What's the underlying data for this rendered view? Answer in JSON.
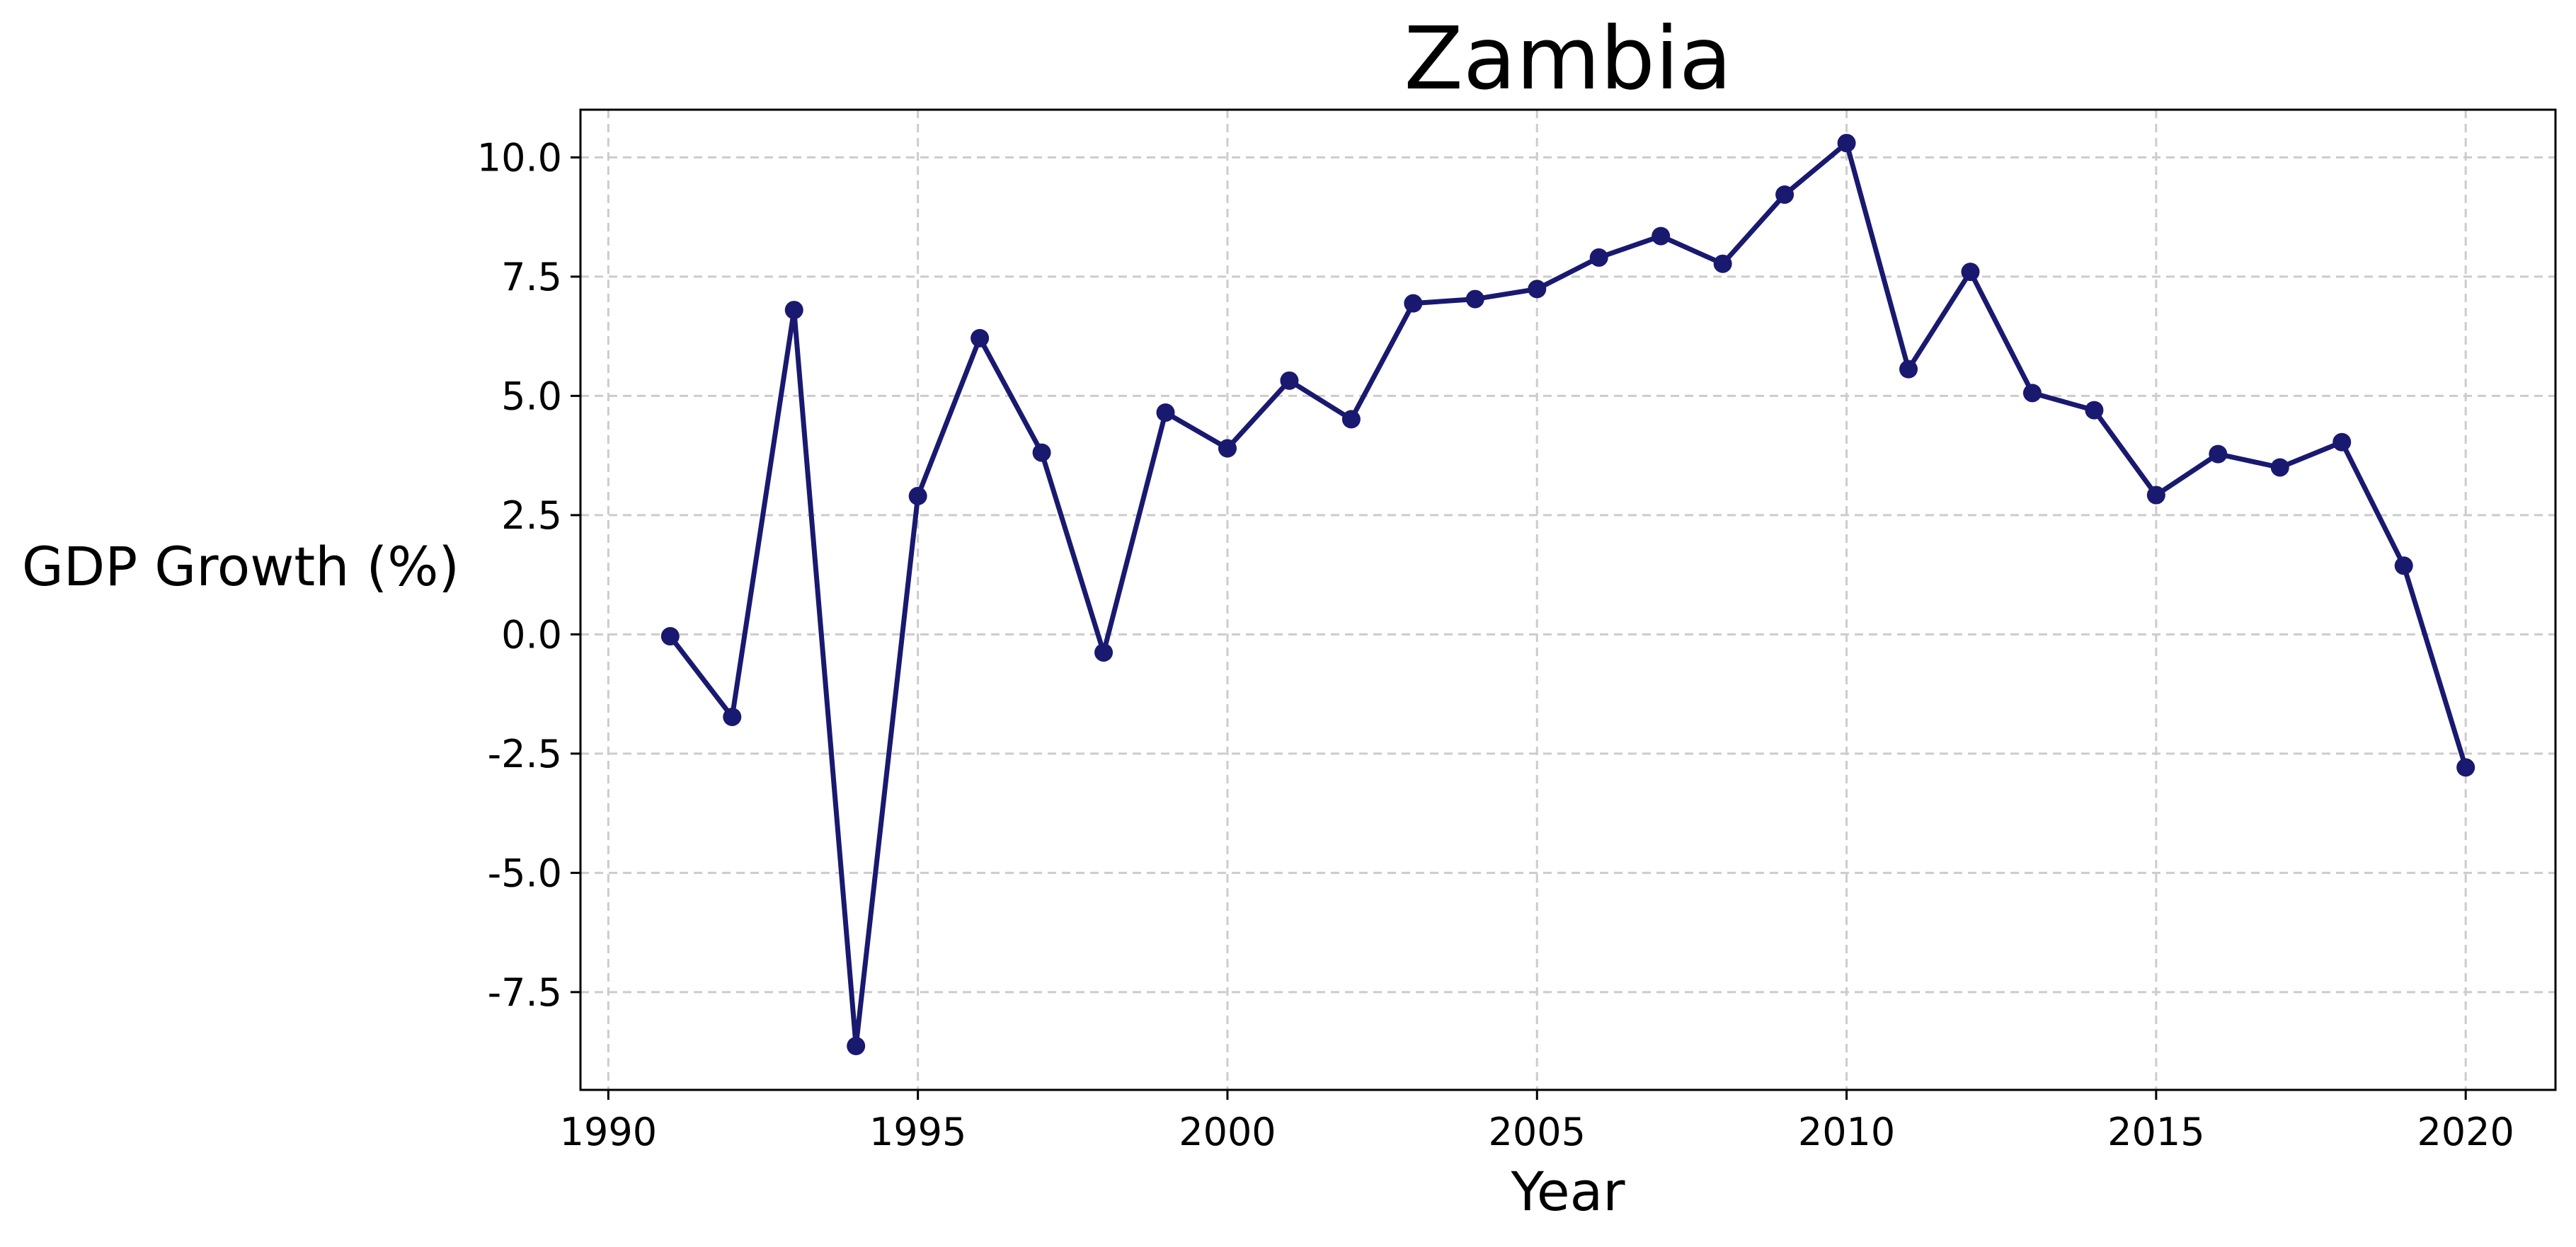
{
  "chart_data": {
    "type": "line",
    "title": "Zambia",
    "xlabel": "Year",
    "ylabel": "GDP Growth (%)",
    "xlim": [
      1989.55,
      2021.45
    ],
    "ylim": [
      -9.55,
      11.0
    ],
    "grid": true,
    "x_ticks": [
      1990,
      1995,
      2000,
      2005,
      2010,
      2015,
      2020
    ],
    "y_ticks": [
      -7.5,
      -5.0,
      -2.5,
      0.0,
      2.5,
      5.0,
      7.5,
      10.0
    ],
    "series": [
      {
        "color": "#191970",
        "marker": "circle",
        "x": [
          1991,
          1992,
          1993,
          1994,
          1995,
          1996,
          1997,
          1998,
          1999,
          2000,
          2001,
          2002,
          2003,
          2004,
          2005,
          2006,
          2007,
          2008,
          2009,
          2010,
          2011,
          2012,
          2013,
          2014,
          2015,
          2016,
          2017,
          2018,
          2019,
          2020
        ],
        "y": [
          -0.04,
          -1.73,
          6.8,
          -8.63,
          2.9,
          6.21,
          3.81,
          -0.38,
          4.65,
          3.9,
          5.32,
          4.51,
          6.94,
          7.03,
          7.24,
          7.9,
          8.35,
          7.77,
          9.22,
          10.3,
          5.56,
          7.6,
          5.06,
          4.7,
          2.92,
          3.78,
          3.5,
          4.03,
          1.44,
          -2.79
        ]
      }
    ]
  }
}
